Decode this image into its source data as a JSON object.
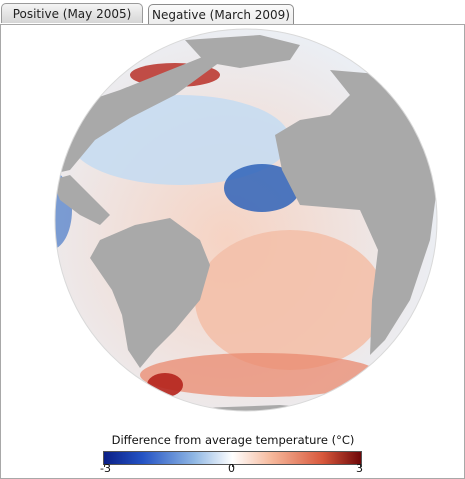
{
  "tabs": [
    {
      "label": "Positive (May 2005)",
      "active": false
    },
    {
      "label": "Negative (March 2009)",
      "active": true
    }
  ],
  "legend": {
    "title": "Difference from average temperature (°C)",
    "min_label": "-3",
    "mid_label": "0",
    "max_label": "3",
    "colors": [
      "#0b1f86",
      "#2453c4",
      "#8fb7e4",
      "#ffffff",
      "#f6b99c",
      "#d8583c",
      "#6e0708"
    ]
  },
  "map": {
    "land_color": "#a9a9a9",
    "anomaly": "Negative"
  }
}
